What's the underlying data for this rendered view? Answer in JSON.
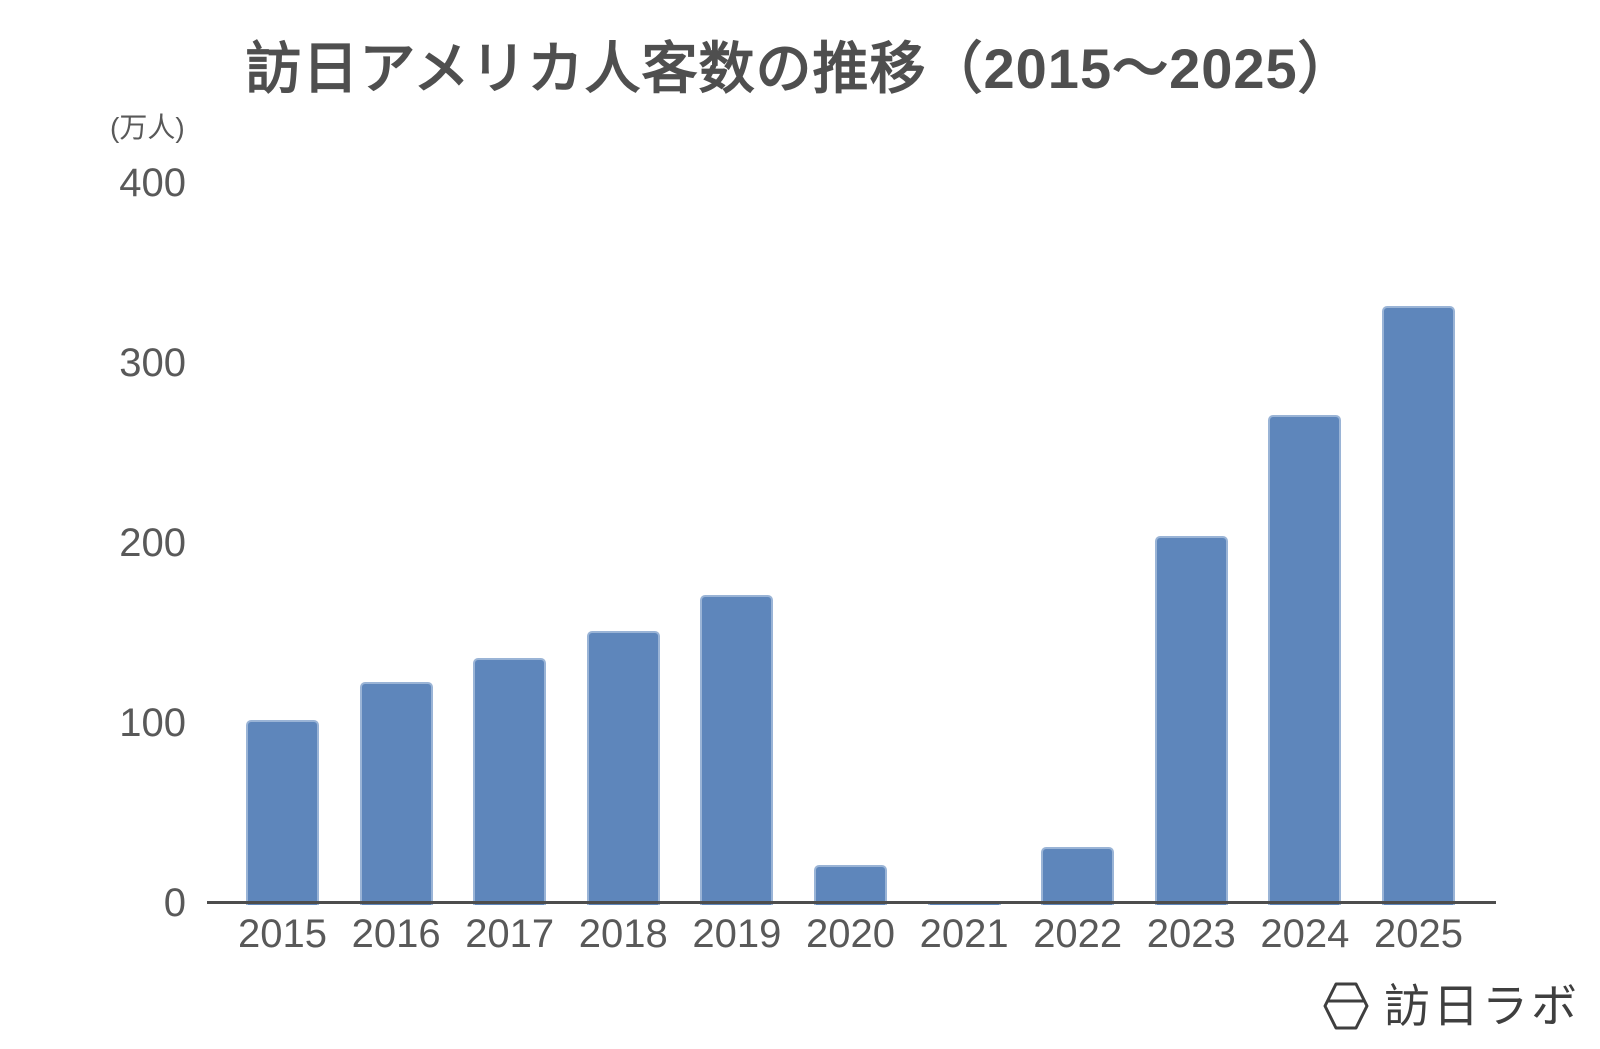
{
  "title": "訪日アメリカ人客数の推移（2015〜2025）",
  "y_axis": {
    "unit_label": "(万人)",
    "ticks": [
      0,
      100,
      200,
      300,
      400
    ]
  },
  "chart_data": {
    "type": "bar",
    "title": "訪日アメリカ人客数の推移（2015〜2025）",
    "unit": "万人",
    "categories": [
      "2015",
      "2016",
      "2017",
      "2018",
      "2019",
      "2020",
      "2021",
      "2022",
      "2023",
      "2024",
      "2025"
    ],
    "values": [
      103,
      124,
      137,
      152,
      172,
      22,
      2,
      32,
      205,
      272,
      333
    ],
    "xlabel": "",
    "ylabel": "(万人)",
    "ylim": [
      0,
      400
    ],
    "grid": false,
    "legend": false,
    "bar_color": "#5E86BB"
  },
  "colors": {
    "bar_fill": "#5E86BB",
    "bar_border": "#9AB4D6",
    "axis_line": "#4D4D4D",
    "title_text": "#4F4F4F",
    "tick_text": "#595959",
    "logo_text": "#3F3F3F"
  },
  "logo": {
    "text": "訪日ラボ",
    "icon": "hexagon-lantern-icon"
  }
}
